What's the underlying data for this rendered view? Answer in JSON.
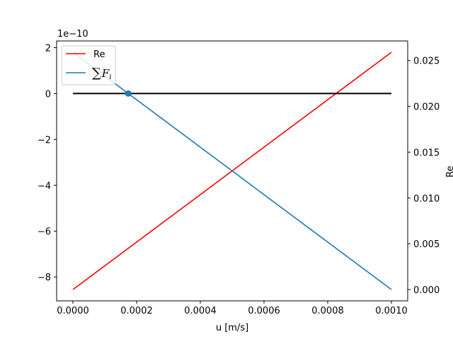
{
  "chart_data": {
    "type": "line",
    "xlabel": "u [m/s]",
    "ylabel_right": "Re",
    "offset_label": "1e−10",
    "x_range": [
      0.0,
      0.001
    ],
    "left_axis": {
      "scale_factor": 1e-10,
      "ticks": [
        2,
        0,
        -2,
        -4,
        -6,
        -8
      ],
      "tick_labels": [
        "2",
        "0",
        "−2",
        "−4",
        "−6",
        "−8"
      ],
      "range": [
        -8.55,
        1.8
      ]
    },
    "right_axis": {
      "ticks": [
        0.0,
        0.005,
        0.01,
        0.015,
        0.02,
        0.025
      ],
      "tick_labels": [
        "0.000",
        "0.005",
        "0.010",
        "0.015",
        "0.020",
        "0.025"
      ],
      "range": [
        0.0,
        0.0259
      ]
    },
    "x_ticks": [
      0.0,
      0.0002,
      0.0004,
      0.0006,
      0.0008,
      0.001
    ],
    "x_tick_labels": [
      "0.0000",
      "0.0002",
      "0.0004",
      "0.0006",
      "0.0008",
      "0.0010"
    ],
    "series": [
      {
        "name": "Re",
        "axis": "right",
        "color": "#ff0000",
        "x": [
          0.0,
          0.001
        ],
        "y": [
          0.0,
          0.0259
        ]
      },
      {
        "name": "∑F_i",
        "axis": "left",
        "color": "#1f77b4",
        "x": [
          0.0,
          0.001
        ],
        "y": [
          1.8,
          -8.55
        ]
      },
      {
        "name": "",
        "axis": "left",
        "color": "#000000",
        "x": [
          0.0,
          0.001
        ],
        "y": [
          0.0,
          0.0
        ]
      }
    ],
    "marker": {
      "x": 0.000174,
      "y": 0.0,
      "axis": "left",
      "color": "#1f77b4"
    },
    "legend": {
      "placement": "upper-left",
      "entries": [
        {
          "label": "Re",
          "color": "#ff0000"
        },
        {
          "label": "∑",
          "sub": "i",
          "base": "F",
          "color": "#1f77b4"
        }
      ]
    },
    "grid": false
  }
}
